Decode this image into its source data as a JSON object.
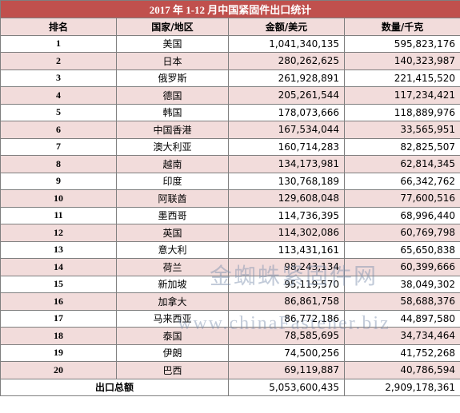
{
  "title": "2017 年 1-12 月中国紧固件出口统计",
  "columns": [
    "排名",
    "国家/地区",
    "金额/美元",
    "数量/千克"
  ],
  "rows": [
    [
      "1",
      "美国",
      "1,041,340,135",
      "595,823,176"
    ],
    [
      "2",
      "日本",
      "280,262,625",
      "140,323,987"
    ],
    [
      "3",
      "俄罗斯",
      "261,928,891",
      "221,415,520"
    ],
    [
      "4",
      "德国",
      "205,261,544",
      "117,234,421"
    ],
    [
      "5",
      "韩国",
      "178,073,666",
      "118,889,976"
    ],
    [
      "6",
      "中国香港",
      "167,534,044",
      "33,565,951"
    ],
    [
      "7",
      "澳大利亚",
      "160,714,283",
      "82,825,507"
    ],
    [
      "8",
      "越南",
      "134,173,981",
      "62,814,345"
    ],
    [
      "9",
      "印度",
      "130,768,189",
      "66,342,762"
    ],
    [
      "10",
      "阿联酋",
      "129,608,048",
      "77,600,516"
    ],
    [
      "11",
      "墨西哥",
      "114,736,395",
      "68,996,440"
    ],
    [
      "12",
      "英国",
      "114,302,086",
      "60,769,798"
    ],
    [
      "13",
      "意大利",
      "113,431,161",
      "65,650,838"
    ],
    [
      "14",
      "荷兰",
      "98,243,134",
      "60,399,666"
    ],
    [
      "15",
      "新加坡",
      "95,119,570",
      "38,049,302"
    ],
    [
      "16",
      "加拿大",
      "86,861,758",
      "58,688,376"
    ],
    [
      "17",
      "马来西亚",
      "86,772,186",
      "44,897,580"
    ],
    [
      "18",
      "泰国",
      "78,585,695",
      "34,734,464"
    ],
    [
      "19",
      "伊朗",
      "74,500,256",
      "41,752,268"
    ],
    [
      "20",
      "巴西",
      "69,119,887",
      "40,786,594"
    ]
  ],
  "total": [
    "出口总额",
    "5,053,600,435",
    "2,909,178,361"
  ],
  "watermark": [
    "金蜘蛛紧固件网",
    "www.chinaFastener.biz"
  ]
}
